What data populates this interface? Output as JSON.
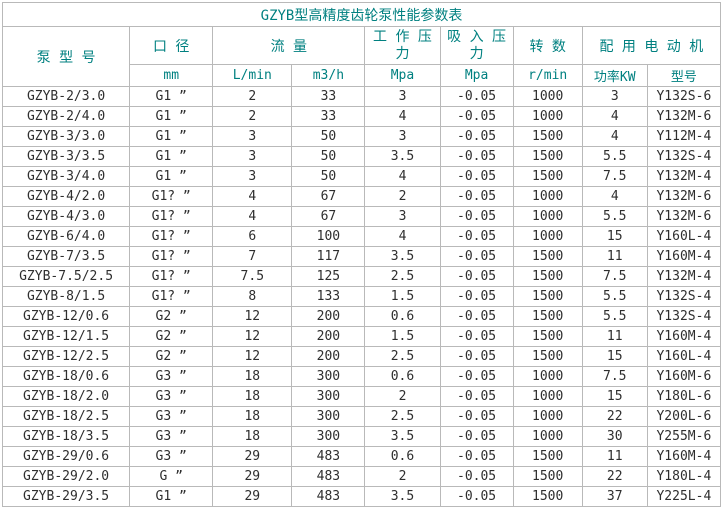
{
  "title": "GZYB型高精度齿轮泵性能参数表",
  "colors": {
    "header_text": "#008080",
    "body_text": "#2e2e2e",
    "border": "#b9b9b9",
    "background": "#ffffff"
  },
  "table": {
    "header": {
      "pump_model": "泵 型 号",
      "diameter": "口 径",
      "flow": "流 量",
      "working_pressure": "工 作 压\n力",
      "suction_pressure": "吸 入 压\n力",
      "speed": "转 数",
      "motor": "配 用 电 动 机"
    },
    "units": {
      "diameter_mm": "mm",
      "flow_lmin": "L/min",
      "flow_m3h": "m3/h",
      "working_pressure_mpa": "Mpa",
      "suction_pressure_mpa": "Mpa",
      "speed_rmin": "r/min",
      "power_kw": "功率KW",
      "motor_model": "型号"
    },
    "rows": [
      [
        "GZYB-2/3.0",
        "G1 ”",
        "2",
        "33",
        "3",
        "-0.05",
        "1000",
        "3",
        "Y132S-6"
      ],
      [
        "GZYB-2/4.0",
        "G1 ”",
        "2",
        "33",
        "4",
        "-0.05",
        "1000",
        "4",
        "Y132M-6"
      ],
      [
        "GZYB-3/3.0",
        "G1 ”",
        "3",
        "50",
        "3",
        "-0.05",
        "1500",
        "4",
        "Y112M-4"
      ],
      [
        "GZYB-3/3.5",
        "G1 ”",
        "3",
        "50",
        "3.5",
        "-0.05",
        "1500",
        "5.5",
        "Y132S-4"
      ],
      [
        "GZYB-3/4.0",
        "G1 ”",
        "3",
        "50",
        "4",
        "-0.05",
        "1500",
        "7.5",
        "Y132M-4"
      ],
      [
        "GZYB-4/2.0",
        "G1? ”",
        "4",
        "67",
        "2",
        "-0.05",
        "1000",
        "4",
        "Y132M-6"
      ],
      [
        "GZYB-4/3.0",
        "G1? ”",
        "4",
        "67",
        "3",
        "-0.05",
        "1000",
        "5.5",
        "Y132M-6"
      ],
      [
        "GZYB-6/4.0",
        "G1? ”",
        "6",
        "100",
        "4",
        "-0.05",
        "1000",
        "15",
        "Y160L-4"
      ],
      [
        "GZYB-7/3.5",
        "G1? ”",
        "7",
        "117",
        "3.5",
        "-0.05",
        "1500",
        "11",
        "Y160M-4"
      ],
      [
        "GZYB-7.5/2.5",
        "G1? ”",
        "7.5",
        "125",
        "2.5",
        "-0.05",
        "1500",
        "7.5",
        "Y132M-4"
      ],
      [
        "GZYB-8/1.5",
        "G1? ”",
        "8",
        "133",
        "1.5",
        "-0.05",
        "1500",
        "5.5",
        "Y132S-4"
      ],
      [
        "GZYB-12/0.6",
        "G2 ”",
        "12",
        "200",
        "0.6",
        "-0.05",
        "1500",
        "5.5",
        "Y132S-4"
      ],
      [
        "GZYB-12/1.5",
        "G2 ”",
        "12",
        "200",
        "1.5",
        "-0.05",
        "1500",
        "11",
        "Y160M-4"
      ],
      [
        "GZYB-12/2.5",
        "G2 ”",
        "12",
        "200",
        "2.5",
        "-0.05",
        "1500",
        "15",
        "Y160L-4"
      ],
      [
        "GZYB-18/0.6",
        "G3 ”",
        "18",
        "300",
        "0.6",
        "-0.05",
        "1000",
        "7.5",
        "Y160M-6"
      ],
      [
        "GZYB-18/2.0",
        "G3 ”",
        "18",
        "300",
        "2",
        "-0.05",
        "1000",
        "15",
        "Y180L-6"
      ],
      [
        "GZYB-18/2.5",
        "G3 ”",
        "18",
        "300",
        "2.5",
        "-0.05",
        "1000",
        "22",
        "Y200L-6"
      ],
      [
        "GZYB-18/3.5",
        "G3 ”",
        "18",
        "300",
        "3.5",
        "-0.05",
        "1000",
        "30",
        "Y255M-6"
      ],
      [
        "GZYB-29/0.6",
        "G3 ”",
        "29",
        "483",
        "0.6",
        "-0.05",
        "1500",
        "11",
        "Y160M-4"
      ],
      [
        "GZYB-29/2.0",
        "G ”",
        "29",
        "483",
        "2",
        "-0.05",
        "1500",
        "22",
        "Y180L-4"
      ],
      [
        "GZYB-29/3.5",
        "G1 ”",
        "29",
        "483",
        "3.5",
        "-0.05",
        "1500",
        "37",
        "Y225L-4"
      ]
    ]
  }
}
